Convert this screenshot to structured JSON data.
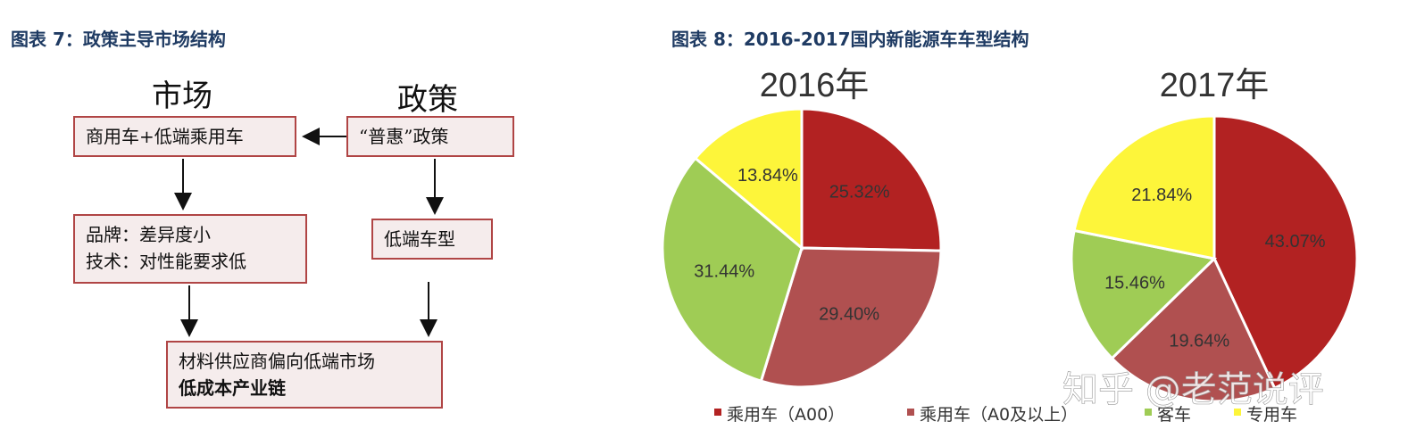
{
  "figure7": {
    "title": "图表 7：政策主导市场结构",
    "market_label": "市场",
    "policy_label": "政策",
    "box_market": "商用车+低端乘用车",
    "box_policy": "“普惠”政策",
    "box_brand_line1": "品牌：差异度小",
    "box_brand_line2": "技术：对性能要求低",
    "box_lowend": "低端车型",
    "box_supply_line1": "材料供应商偏向低端市场",
    "box_supply_line2": "低成本产业链"
  },
  "figure8": {
    "title": "图表 8：2016-2017国内新能源车车型结构",
    "watermark": "知乎 @老范说评"
  },
  "chart_data": [
    {
      "type": "pie",
      "title": "2016年",
      "categories": [
        "乘用车（A00）",
        "乘用车（A0及以上）",
        "客车",
        "专用车"
      ],
      "values": [
        25.32,
        29.4,
        31.44,
        13.84
      ],
      "value_labels": [
        "25.32%",
        "29.40%",
        "31.44%",
        "13.84%"
      ],
      "colors": [
        "#b22222",
        "#b05050",
        "#9fcc55",
        "#fdf53a"
      ],
      "legend_position": "bottom"
    },
    {
      "type": "pie",
      "title": "2017年",
      "categories": [
        "乘用车（A00）",
        "乘用车（A0及以上）",
        "客车",
        "专用车"
      ],
      "values": [
        43.07,
        19.64,
        15.46,
        21.84
      ],
      "value_labels": [
        "43.07%",
        "19.64%",
        "15.46%",
        "21.84%"
      ],
      "colors": [
        "#b22222",
        "#b05050",
        "#9fcc55",
        "#fdf53a"
      ],
      "legend_position": "bottom"
    }
  ]
}
